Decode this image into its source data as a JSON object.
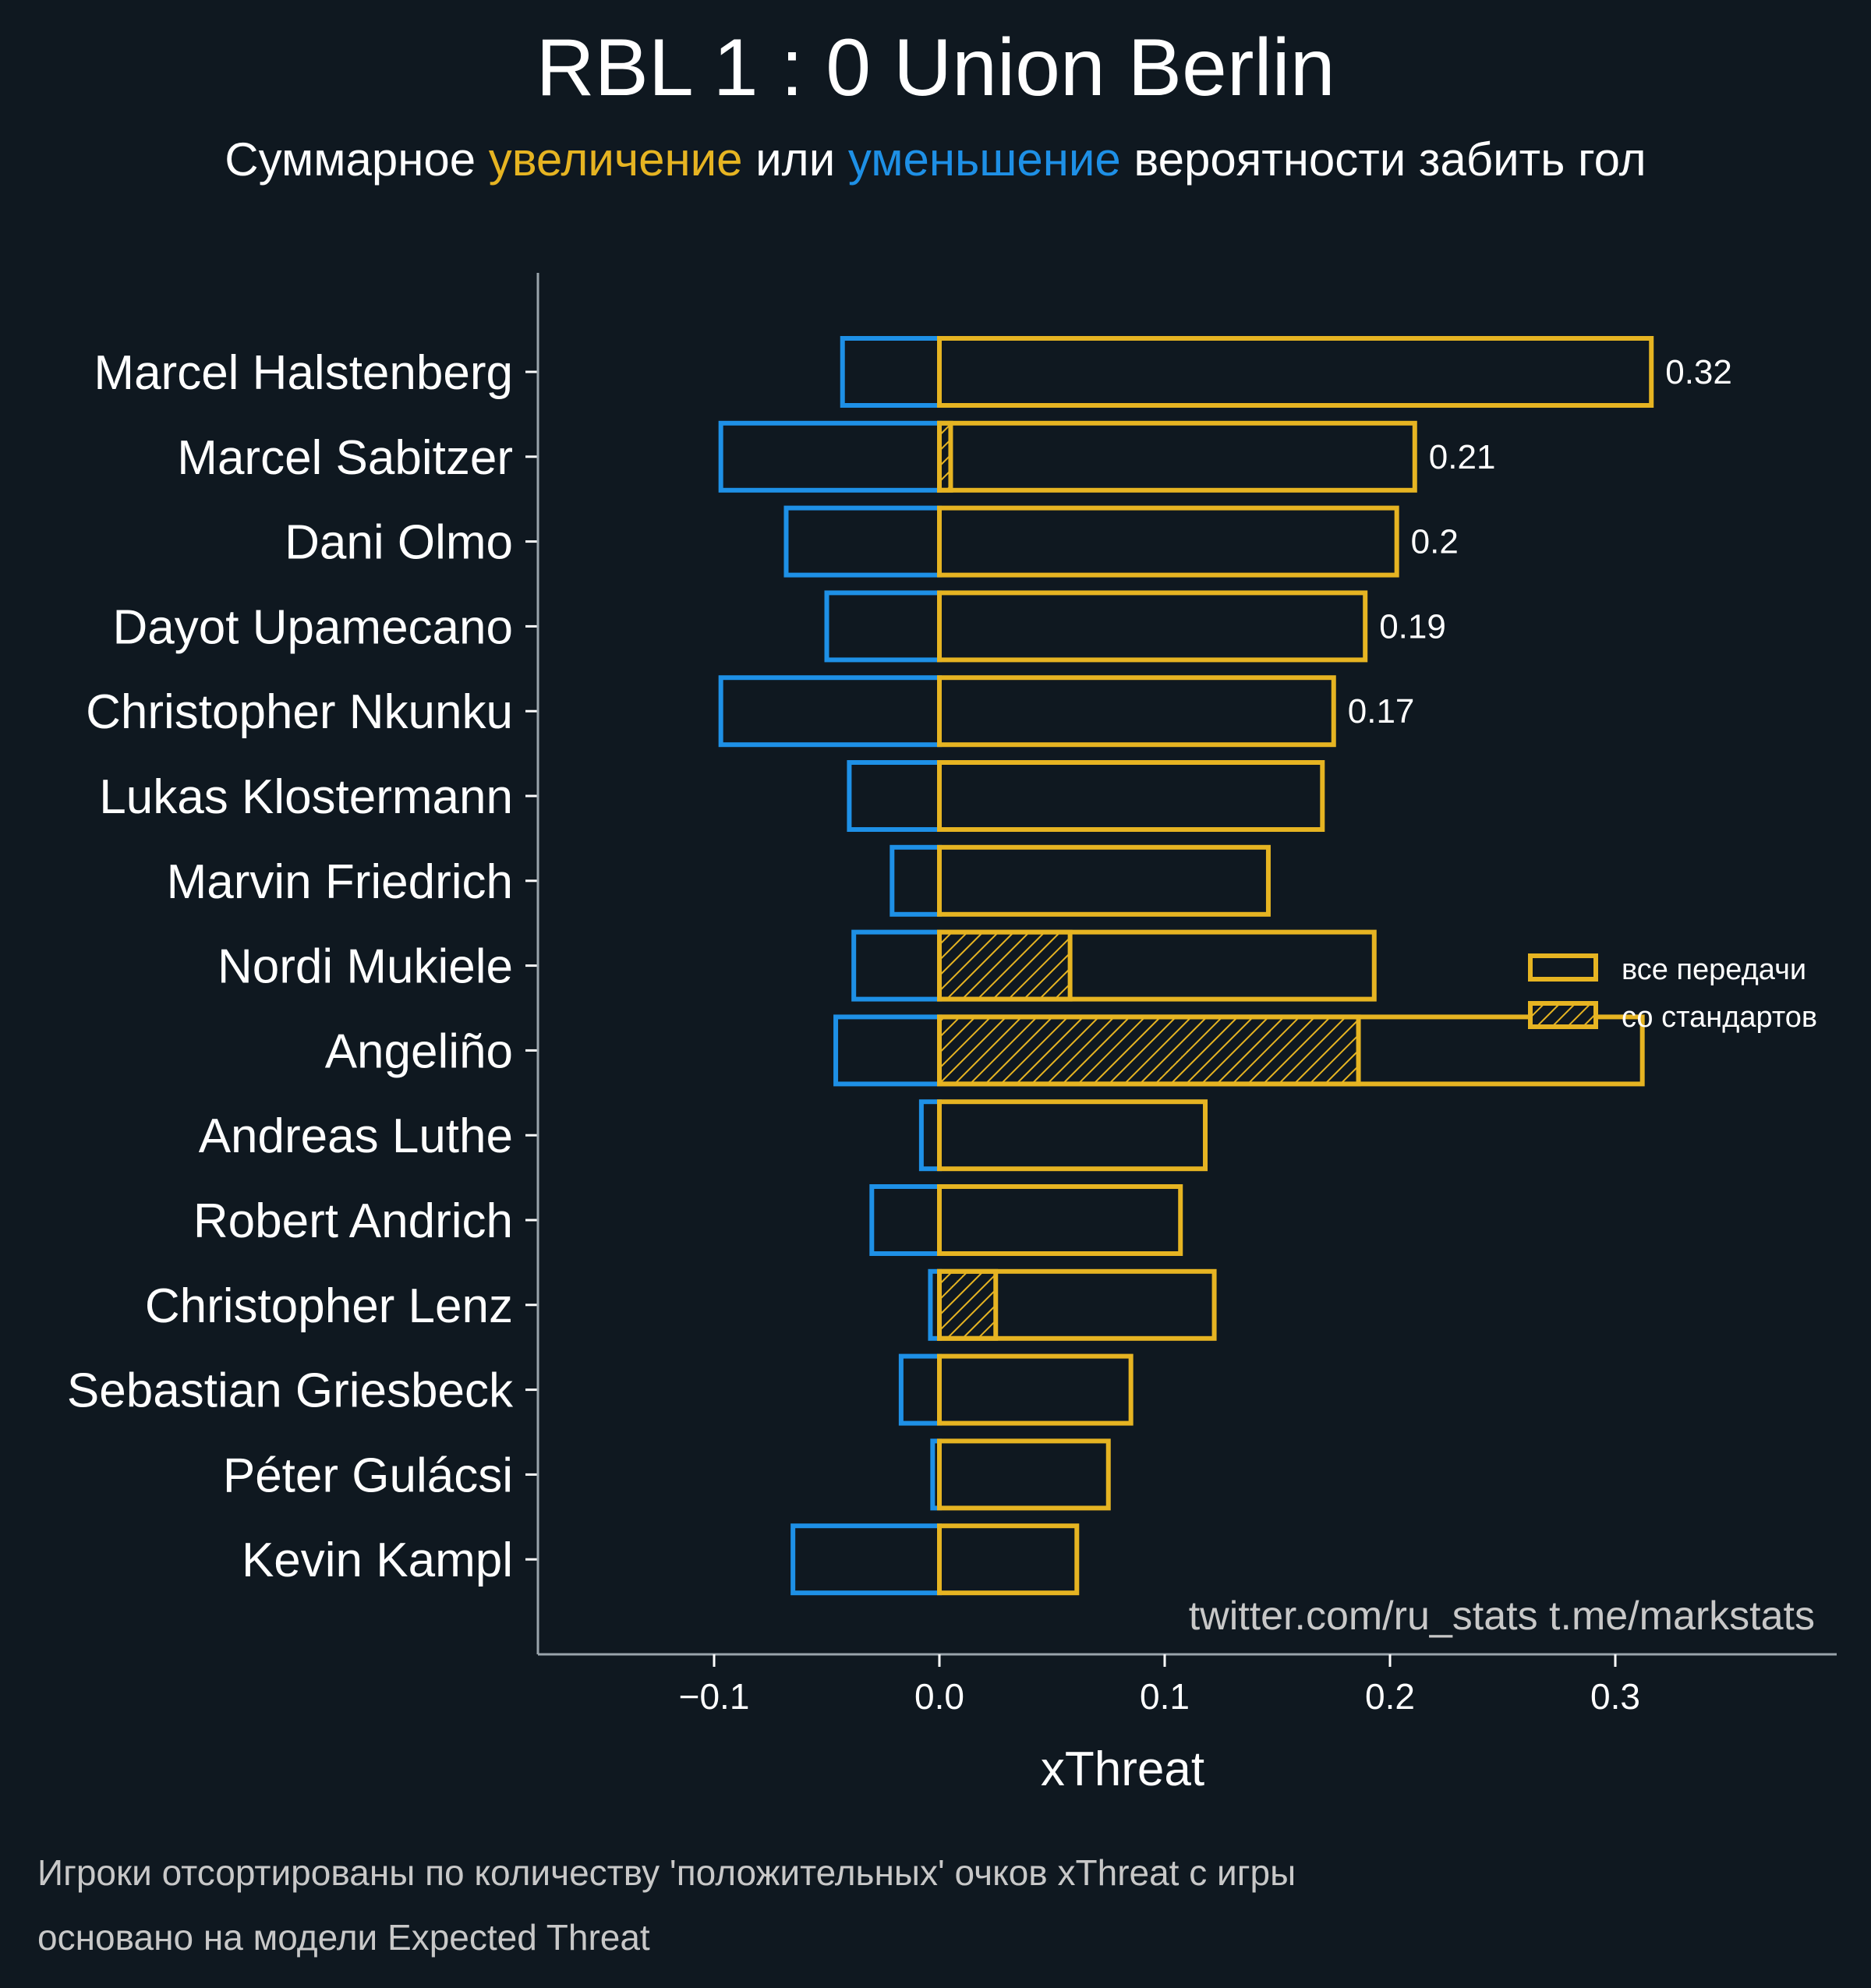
{
  "chart_data": {
    "type": "bar",
    "title": "RBL 1 : 0 Union Berlin",
    "subtitle": {
      "prefix": "Суммарное ",
      "increase": "увеличение",
      "middle": " или ",
      "decrease": "уменьшение",
      "suffix": " вероятности забить гол"
    },
    "xlabel": "xThreat",
    "xlim": [
      -0.178,
      0.398
    ],
    "xticks": [
      -0.1,
      0.0,
      0.1,
      0.2,
      0.3
    ],
    "xtick_labels": [
      "−0.1",
      "0.0",
      "0.1",
      "0.2",
      "0.3"
    ],
    "players": [
      "Marcel Halstenberg",
      "Marcel Sabitzer",
      "Dani Olmo",
      "Dayot Upamecano",
      "Christopher Nkunku",
      "Lukas Klostermann",
      "Marvin Friedrich",
      "Nordi Mukiele",
      "Angeliño",
      "Andreas Luthe",
      "Robert Andrich",
      "Christopher Lenz",
      "Sebastian Griesbeck",
      "Péter Gulácsi",
      "Kevin Kampl"
    ],
    "series": [
      {
        "name": "positive",
        "color": "#e6b422",
        "values": [
          0.316,
          0.211,
          0.203,
          0.189,
          0.175,
          0.17,
          0.146,
          0.193,
          0.312,
          0.118,
          0.107,
          0.122,
          0.085,
          0.075,
          0.061
        ]
      },
      {
        "name": "negative",
        "color": "#1e90e6",
        "values": [
          -0.043,
          -0.097,
          -0.068,
          -0.05,
          -0.097,
          -0.04,
          -0.021,
          -0.038,
          -0.046,
          -0.008,
          -0.03,
          -0.004,
          -0.017,
          -0.003,
          -0.065
        ]
      },
      {
        "name": "со стандартов",
        "color": "#e6b422",
        "values": [
          0.0,
          0.005,
          0.0,
          0.0,
          0.0,
          0.0,
          0.0,
          0.058,
          0.186,
          0.0,
          0.0,
          0.025,
          0.0,
          0.0,
          0.0
        ]
      }
    ],
    "value_labels": [
      "0.32",
      "0.21",
      "0.2",
      "0.19",
      "0.17"
    ],
    "legend": {
      "position": "right",
      "items": [
        "все передачи",
        "со стандартов"
      ]
    },
    "watermark": "twitter.com/ru_stats  t.me/markstats"
  },
  "footnotes": [
    "Игроки отсортированы по количеству 'положительных' очков xThreat с игры",
    "основано на модели Expected Threat"
  ]
}
